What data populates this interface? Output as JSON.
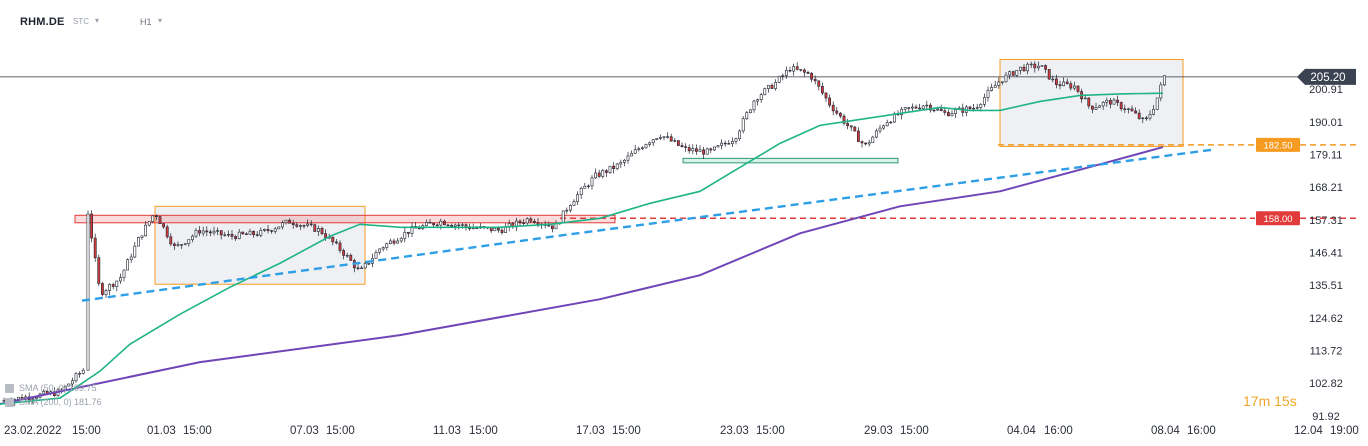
{
  "toolbar": {
    "symbol": "RHM.DE",
    "instrument_type": "STC",
    "timeframe": "H1"
  },
  "countdown": "17m 15s",
  "legend": [
    {
      "text": "SMA (50, 0) 199.75",
      "color": "#1fb488"
    },
    {
      "text": "SMA (200, 0) 181.76",
      "color": "#6f45b8"
    }
  ],
  "colors": {
    "up": "#2f9a76",
    "down": "#d23a3a",
    "sma50": "#1fb488",
    "sma200": "#6f45b8",
    "trendline": "#2e9fe6",
    "resistance": "#e23b3b",
    "support": "#f59b21",
    "zone_box": "#f59b21",
    "price_tag": "#3b4252"
  },
  "chart_data": {
    "type": "candlestick",
    "timeframe": "H1",
    "y_ticks": [
      "200.91",
      "190.01",
      "179.11",
      "168.21",
      "157.31",
      "146.41",
      "135.51",
      "124.62",
      "113.72",
      "102.82",
      "91.92"
    ],
    "ylim": [
      91.92,
      210.0
    ],
    "x_ticks": [
      "23.02.2022",
      "15:00",
      "01.03",
      "15:00",
      "07.03",
      "15:00",
      "11.03",
      "15:00",
      "17.03",
      "15:00",
      "23.03",
      "15:00",
      "29.03",
      "15:00",
      "04.04",
      "16:00",
      "08.04",
      "16:00",
      "12.04",
      "19:00"
    ],
    "current_price": "205.20",
    "price_series_approx": [
      [
        0,
        97
      ],
      [
        60,
        100
      ],
      [
        85,
        108
      ],
      [
        88,
        160
      ],
      [
        100,
        133
      ],
      [
        120,
        138
      ],
      [
        140,
        152
      ],
      [
        155,
        160
      ],
      [
        175,
        148
      ],
      [
        200,
        154
      ],
      [
        230,
        152
      ],
      [
        260,
        153
      ],
      [
        290,
        157
      ],
      [
        320,
        154
      ],
      [
        345,
        146
      ],
      [
        360,
        140
      ],
      [
        380,
        148
      ],
      [
        410,
        154
      ],
      [
        440,
        157
      ],
      [
        470,
        155
      ],
      [
        500,
        154
      ],
      [
        530,
        158
      ],
      [
        555,
        155
      ],
      [
        570,
        163
      ],
      [
        595,
        172
      ],
      [
        620,
        176
      ],
      [
        645,
        183
      ],
      [
        660,
        186
      ],
      [
        685,
        181
      ],
      [
        710,
        180
      ],
      [
        735,
        185
      ],
      [
        755,
        198
      ],
      [
        775,
        203
      ],
      [
        790,
        208
      ],
      [
        810,
        206
      ],
      [
        830,
        196
      ],
      [
        850,
        188
      ],
      [
        865,
        182
      ],
      [
        885,
        190
      ],
      [
        905,
        194
      ],
      [
        925,
        196
      ],
      [
        945,
        193
      ],
      [
        975,
        195
      ],
      [
        1000,
        204
      ],
      [
        1020,
        208
      ],
      [
        1040,
        209
      ],
      [
        1055,
        203
      ],
      [
        1075,
        202
      ],
      [
        1090,
        195
      ],
      [
        1110,
        197
      ],
      [
        1130,
        194
      ],
      [
        1145,
        190
      ],
      [
        1155,
        196
      ],
      [
        1165,
        206
      ]
    ],
    "sma50_approx": [
      [
        0,
        96
      ],
      [
        60,
        98
      ],
      [
        100,
        107
      ],
      [
        130,
        116
      ],
      [
        180,
        126
      ],
      [
        230,
        135
      ],
      [
        280,
        143
      ],
      [
        330,
        152
      ],
      [
        360,
        156
      ],
      [
        400,
        155
      ],
      [
        450,
        155
      ],
      [
        500,
        155
      ],
      [
        550,
        156
      ],
      [
        600,
        158
      ],
      [
        650,
        163
      ],
      [
        700,
        167
      ],
      [
        740,
        175
      ],
      [
        780,
        183
      ],
      [
        820,
        189
      ],
      [
        860,
        191
      ],
      [
        900,
        193
      ],
      [
        940,
        195
      ],
      [
        970,
        194
      ],
      [
        1000,
        194
      ],
      [
        1040,
        197
      ],
      [
        1080,
        199
      ],
      [
        1120,
        199.5
      ],
      [
        1163,
        199.75
      ]
    ],
    "sma200_approx": [
      [
        0,
        96
      ],
      [
        200,
        110
      ],
      [
        400,
        119
      ],
      [
        600,
        131
      ],
      [
        700,
        139
      ],
      [
        800,
        153
      ],
      [
        900,
        162
      ],
      [
        1000,
        167
      ],
      [
        1100,
        176
      ],
      [
        1163,
        181.76
      ]
    ],
    "trendlines": [
      {
        "style": "dashed",
        "color": "#2e9fe6",
        "points": [
          [
            82,
            130.5
          ],
          [
            555,
            152
          ],
          [
            1215,
            181
          ]
        ]
      }
    ],
    "levels": [
      {
        "value": 158.0,
        "label": "158.00",
        "color": "#e23b3b",
        "style": "dashed"
      },
      {
        "value": 182.5,
        "label": "182.50",
        "color": "#f59b21",
        "style": "dashed"
      }
    ],
    "zones": [
      {
        "kind": "consolidation",
        "x": [
          155,
          365
        ],
        "y": [
          136,
          162
        ]
      },
      {
        "kind": "consolidation",
        "x": [
          1000,
          1183
        ],
        "y": [
          182,
          211
        ]
      },
      {
        "kind": "resistance_band",
        "x": [
          75,
          615
        ],
        "y": [
          156.5,
          159
        ]
      },
      {
        "kind": "support_band",
        "x": [
          683,
          898
        ],
        "y": [
          176.5,
          178
        ]
      }
    ]
  }
}
